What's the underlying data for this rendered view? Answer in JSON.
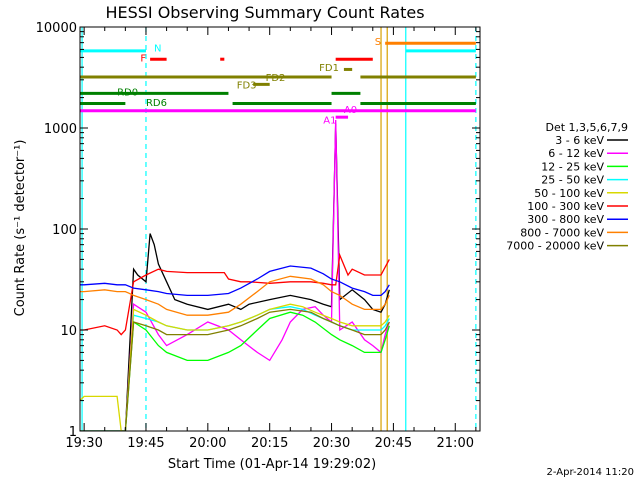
{
  "chart_data": {
    "type": "line",
    "title": "HESSI Observing Summary Count Rates",
    "xlabel": "Start Time (01-Apr-14 19:29:02)",
    "ylabel": "Count Rate (s⁻¹ detector⁻¹)",
    "y_scale": "log",
    "ylim": [
      1,
      10000
    ],
    "xlim": [
      "19:29",
      "21:06"
    ],
    "x_ticks": [
      "19:30",
      "19:45",
      "20:00",
      "20:15",
      "20:30",
      "20:45",
      "21:00"
    ],
    "y_ticks": [
      "1",
      "10",
      "100",
      "1000",
      "10000"
    ],
    "footer_date": "2-Apr-2014 11:20",
    "legend_title": "Det 1,3,5,6,7,9",
    "legend_placement": "right",
    "series": [
      {
        "name": "3 - 6 keV",
        "color": "#000000",
        "x": [
          "19:29",
          "19:30",
          "19:38",
          "19:40",
          "19:42",
          "19:43",
          "19:45",
          "19:46",
          "19:47",
          "19:48",
          "19:50",
          "19:52",
          "19:55",
          "20:00",
          "20:05",
          "20:08",
          "20:10",
          "20:15",
          "20:20",
          "20:25",
          "20:28",
          "20:30",
          "20:31",
          "20:32",
          "20:35",
          "20:38",
          "20:40",
          "20:42",
          "20:43",
          "20:44"
        ],
        "y": [
          1,
          1,
          1,
          1,
          40,
          35,
          30,
          90,
          70,
          45,
          30,
          20,
          18,
          16,
          18,
          16,
          18,
          20,
          22,
          20,
          18,
          17,
          1100,
          20,
          25,
          20,
          16,
          15,
          18,
          25
        ]
      },
      {
        "name": "6 - 12 keV",
        "color": "#ff00ff",
        "x": [
          "19:29",
          "19:30",
          "19:38",
          "19:40",
          "19:42",
          "19:45",
          "19:48",
          "19:50",
          "19:55",
          "20:00",
          "20:05",
          "20:08",
          "20:12",
          "20:15",
          "20:18",
          "20:20",
          "20:23",
          "20:26",
          "20:28",
          "20:30",
          "20:31",
          "20:32",
          "20:35",
          "20:38",
          "20:40",
          "20:42",
          "20:43",
          "20:44"
        ],
        "y": [
          1,
          1,
          1,
          1,
          18,
          15,
          9,
          7,
          9,
          12,
          10,
          8,
          6,
          5,
          8,
          12,
          16,
          17,
          14,
          12,
          1200,
          10,
          12,
          8,
          7,
          6,
          9,
          12
        ]
      },
      {
        "name": "12 - 25 keV",
        "color": "#00ff00",
        "x": [
          "19:29",
          "19:30",
          "19:38",
          "19:40",
          "19:42",
          "19:45",
          "19:48",
          "19:50",
          "19:55",
          "20:00",
          "20:05",
          "20:08",
          "20:12",
          "20:15",
          "20:20",
          "20:23",
          "20:26",
          "20:30",
          "20:32",
          "20:35",
          "20:38",
          "20:40",
          "20:42",
          "20:43",
          "20:44"
        ],
        "y": [
          1,
          1,
          1,
          1,
          12,
          10,
          7,
          6,
          5,
          5,
          6,
          7,
          10,
          13,
          15,
          14,
          12,
          9,
          8,
          7,
          6,
          6,
          6,
          8,
          11
        ]
      },
      {
        "name": "25 - 50 keV",
        "color": "#00ffff",
        "x": [
          "19:29",
          "19:30",
          "19:38",
          "19:40",
          "19:42",
          "19:45",
          "19:48",
          "19:50",
          "19:55",
          "20:00",
          "20:05",
          "20:08",
          "20:12",
          "20:15",
          "20:20",
          "20:23",
          "20:26",
          "20:30",
          "20:32",
          "20:35",
          "20:38",
          "20:40",
          "20:42",
          "20:43",
          "20:44"
        ],
        "y": [
          1,
          1,
          1,
          1,
          14,
          13,
          12,
          11,
          10,
          10,
          11,
          12,
          14,
          16,
          17,
          16,
          14,
          12,
          11,
          10,
          10,
          10,
          10,
          11,
          13
        ]
      },
      {
        "name": "50 - 100 keV",
        "color": "#d8d800",
        "x": [
          "19:29",
          "19:30",
          "19:36",
          "19:38",
          "19:39",
          "19:40",
          "19:42",
          "19:45",
          "19:48",
          "19:50",
          "19:55",
          "20:00",
          "20:05",
          "20:08",
          "20:12",
          "20:15",
          "20:20",
          "20:23",
          "20:26",
          "20:30",
          "20:32",
          "20:35",
          "20:38",
          "20:40",
          "20:42",
          "20:43",
          "20:44"
        ],
        "y": [
          2,
          2.2,
          2.2,
          2.2,
          1,
          1,
          16,
          14,
          12,
          11,
          10,
          10,
          11,
          12,
          14,
          16,
          18,
          17,
          15,
          13,
          12,
          11,
          11,
          11,
          11,
          12,
          14
        ]
      },
      {
        "name": "100 - 300 keV",
        "color": "#ff0000",
        "x": [
          "19:29",
          "19:30",
          "19:35",
          "19:38",
          "19:39",
          "19:40",
          "19:42",
          "19:45",
          "19:48",
          "19:50",
          "19:55",
          "20:00",
          "20:04",
          "20:05",
          "20:08",
          "20:10",
          "20:15",
          "20:20",
          "20:25",
          "20:28",
          "20:30",
          "20:31",
          "20:32",
          "20:34",
          "20:35",
          "20:38",
          "20:40",
          "20:42",
          "20:43",
          "20:44"
        ],
        "y": [
          10,
          10,
          11,
          10,
          9,
          10,
          30,
          35,
          40,
          38,
          37,
          37,
          37,
          32,
          30,
          30,
          29,
          30,
          30,
          29,
          28,
          28,
          55,
          35,
          40,
          35,
          35,
          35,
          42,
          50
        ]
      },
      {
        "name": "300 - 800 keV",
        "color": "#0000ff",
        "x": [
          "19:29",
          "19:30",
          "19:35",
          "19:38",
          "19:40",
          "19:42",
          "19:45",
          "19:48",
          "19:50",
          "19:55",
          "20:00",
          "20:05",
          "20:08",
          "20:12",
          "20:15",
          "20:20",
          "20:25",
          "20:28",
          "20:30",
          "20:32",
          "20:35",
          "20:38",
          "20:40",
          "20:42",
          "20:43",
          "20:44"
        ],
        "y": [
          28,
          28,
          29,
          28,
          28,
          26,
          25,
          24,
          23,
          22,
          22,
          23,
          26,
          32,
          38,
          43,
          41,
          36,
          32,
          30,
          26,
          24,
          22,
          22,
          24,
          28
        ]
      },
      {
        "name": "800 - 7000 keV",
        "color": "#ff8000",
        "x": [
          "19:29",
          "19:30",
          "19:35",
          "19:38",
          "19:40",
          "19:42",
          "19:45",
          "19:48",
          "19:50",
          "19:55",
          "20:00",
          "20:05",
          "20:08",
          "20:12",
          "20:15",
          "20:20",
          "20:25",
          "20:28",
          "20:30",
          "20:32",
          "20:35",
          "20:38",
          "20:40",
          "20:42",
          "20:43",
          "20:44"
        ],
        "y": [
          24,
          24,
          25,
          24,
          24,
          22,
          20,
          18,
          16,
          14,
          14,
          15,
          18,
          24,
          30,
          34,
          32,
          28,
          24,
          22,
          18,
          16,
          16,
          16,
          18,
          22
        ]
      },
      {
        "name": "7000 - 20000 keV",
        "color": "#808000",
        "x": [
          "19:29",
          "19:30",
          "19:35",
          "19:38",
          "19:40",
          "19:42",
          "19:45",
          "19:48",
          "19:50",
          "19:55",
          "20:00",
          "20:05",
          "20:08",
          "20:12",
          "20:15",
          "20:20",
          "20:25",
          "20:28",
          "20:30",
          "20:32",
          "20:35",
          "20:38",
          "20:40",
          "20:42",
          "20:43",
          "20:44"
        ],
        "y": [
          1,
          1,
          1,
          1,
          1,
          12,
          11,
          10,
          9,
          9,
          9,
          10,
          11,
          13,
          15,
          16,
          15,
          13,
          12,
          11,
          10,
          9,
          9,
          9,
          10,
          12
        ]
      }
    ],
    "vlines": [
      {
        "x": "19:29:30",
        "color": "#00ffff",
        "style": "solid"
      },
      {
        "x": "19:45",
        "color": "#00ffff",
        "style": "dashed"
      },
      {
        "x": "20:42",
        "color": "#d8a000",
        "style": "solid"
      },
      {
        "x": "20:43:30",
        "color": "#d8a000",
        "style": "solid"
      },
      {
        "x": "20:48",
        "color": "#00ffff",
        "style": "solid"
      },
      {
        "x": "21:05",
        "color": "#00ffff",
        "style": "dashed"
      }
    ],
    "flags": [
      {
        "label": "N",
        "color": "#00ffff",
        "y": 5800,
        "label_pos": "after",
        "label_y": 6300,
        "segments": [
          [
            "19:29",
            "19:45"
          ],
          [
            "20:48",
            "21:05"
          ]
        ]
      },
      {
        "label": "S",
        "color": "#ff8000",
        "y": 6900,
        "label_pos": "before",
        "label_y": 7300,
        "segments": [
          [
            "20:43",
            "21:05"
          ]
        ]
      },
      {
        "label": "F",
        "color": "#ff0000",
        "y": 4800,
        "label_pos": "before",
        "label_y": 5000,
        "segments": [
          [
            "19:46",
            "19:50"
          ],
          [
            "20:03",
            "20:04"
          ],
          [
            "20:31",
            "20:40"
          ]
        ]
      },
      {
        "label": "FD1",
        "color": "#808000",
        "y": 3800,
        "label_pos": "custom",
        "label_x": "20:27",
        "label_y": 4000,
        "segments": [
          [
            "20:33",
            "20:35"
          ]
        ]
      },
      {
        "label": "FD2",
        "color": "#808000",
        "y": 3200,
        "label_pos": "custom",
        "label_x": "20:14",
        "label_y": 3200,
        "segments": [
          [
            "19:29",
            "20:30"
          ],
          [
            "20:37",
            "21:05"
          ]
        ]
      },
      {
        "label": "FD3",
        "color": "#808000",
        "y": 2700,
        "label_pos": "custom",
        "label_x": "20:07",
        "label_y": 2700,
        "segments": [
          [
            "20:11",
            "20:15"
          ]
        ]
      },
      {
        "label": "RD0",
        "color": "#008000",
        "y": 2200,
        "label_pos": "custom",
        "label_x": "19:38",
        "label_y": 2300,
        "segments": [
          [
            "19:29",
            "20:05"
          ],
          [
            "20:30",
            "20:37"
          ]
        ]
      },
      {
        "label": "RD6",
        "color": "#008000",
        "y": 1750,
        "label_pos": "custom",
        "label_x": "19:45",
        "label_y": 1800,
        "segments": [
          [
            "19:29",
            "19:40"
          ],
          [
            "20:06",
            "20:30"
          ],
          [
            "20:37",
            "21:05"
          ]
        ]
      },
      {
        "label": "A0",
        "color": "#ff00ff",
        "y": 1480,
        "label_pos": "custom",
        "label_x": "20:33",
        "label_y": 1550,
        "segments": [
          [
            "19:29",
            "21:05"
          ]
        ]
      },
      {
        "label": "A1",
        "color": "#ff00ff",
        "y": 1280,
        "label_pos": "custom",
        "label_x": "20:28",
        "label_y": 1220,
        "segments": [
          [
            "20:31",
            "20:34"
          ]
        ]
      }
    ]
  }
}
